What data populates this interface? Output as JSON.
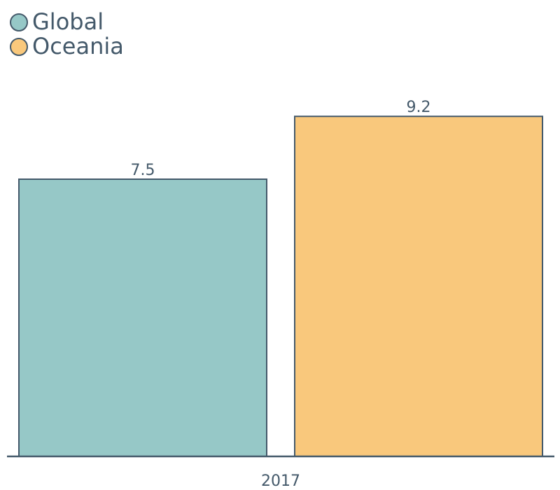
{
  "chart_data": {
    "type": "bar",
    "categories": [
      "2017"
    ],
    "series": [
      {
        "name": "Global",
        "values": [
          7.5
        ],
        "color": "#96c8c7"
      },
      {
        "name": "Oceania",
        "values": [
          9.2
        ],
        "color": "#f9c87c"
      }
    ],
    "ylim": [
      0,
      12
    ],
    "grid": false,
    "legend_position": "top-left",
    "stroke_color": "#44596a",
    "text_color": "#44596a"
  }
}
